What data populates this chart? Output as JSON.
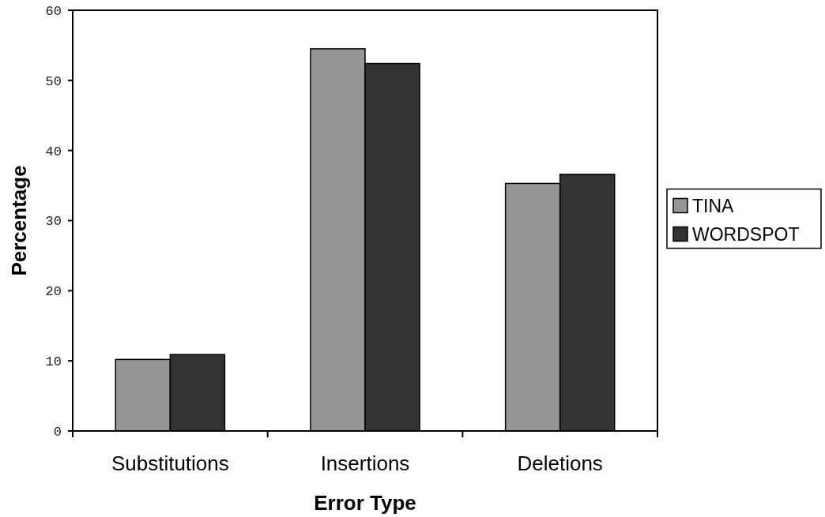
{
  "chart_data": {
    "type": "bar",
    "xlabel": "Error Type",
    "ylabel": "Percentage",
    "categories": [
      "Substitutions",
      "Insertions",
      "Deletions"
    ],
    "series": [
      {
        "name": "TINA",
        "color": "#969696",
        "values": [
          10.2,
          54.5,
          35.3
        ]
      },
      {
        "name": "WORDSPOT",
        "color": "#333333",
        "values": [
          10.9,
          52.4,
          36.6
        ]
      }
    ],
    "ylim": [
      0,
      60
    ],
    "yticks": [
      0,
      10,
      20,
      30,
      40,
      50,
      60
    ],
    "grid": false,
    "legend": "right"
  }
}
